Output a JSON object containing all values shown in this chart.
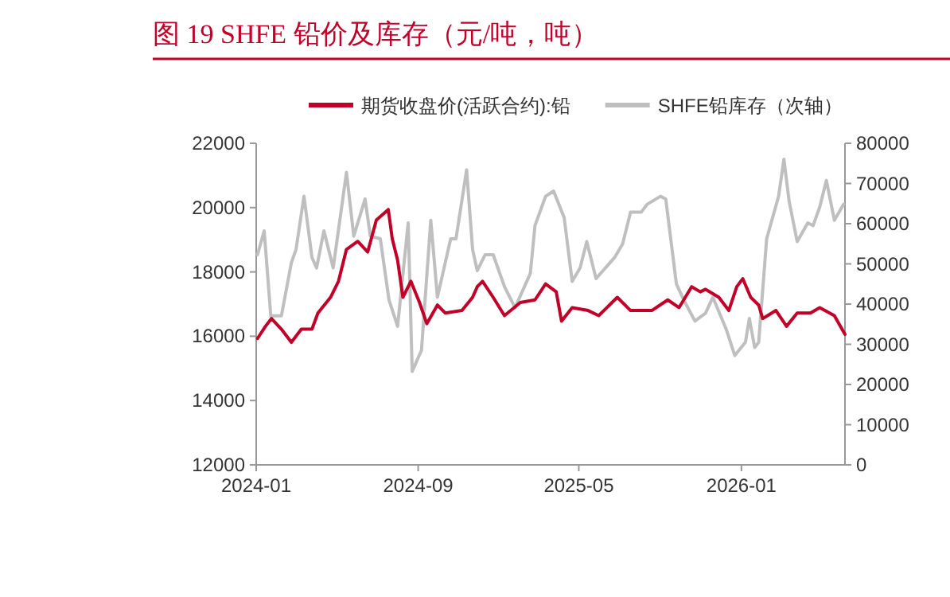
{
  "chart_data": {
    "type": "line",
    "title": "图 19  SHFE 铅价及库存（元/吨，吨）",
    "legend": "top",
    "grid": false,
    "marker": "none",
    "line_style": "solid",
    "xlim": [
      "2024-01-01",
      "2026-06-06"
    ],
    "xticks": [
      "2024-01",
      "2024-09",
      "2025-05",
      "2026-01"
    ],
    "ylim": [
      12000,
      22000
    ],
    "yticks": [
      12000,
      14000,
      16000,
      18000,
      20000,
      22000
    ],
    "y2lim": [
      0,
      80000
    ],
    "y2ticks": [
      0,
      10000,
      20000,
      30000,
      40000,
      50000,
      60000,
      70000,
      80000
    ],
    "series": [
      {
        "name": "期货收盘价(活跃合约):铅",
        "color": "#c00028",
        "x": [
          "2024-01-03",
          "2024-01-15",
          "2024-01-24",
          "2024-02-08",
          "2024-02-23",
          "2024-03-09",
          "2024-03-25",
          "2024-04-03",
          "2024-04-22",
          "2024-05-04",
          "2024-05-16",
          "2024-06-02",
          "2024-06-17",
          "2024-06-30",
          "2024-07-18",
          "2024-07-24",
          "2024-08-01",
          "2024-08-09",
          "2024-08-21",
          "2024-09-03",
          "2024-09-14",
          "2024-09-30",
          "2024-10-12",
          "2024-11-06",
          "2024-11-22",
          "2024-11-29",
          "2024-12-07",
          "2024-12-23",
          "2025-01-09",
          "2025-02-02",
          "2025-02-24",
          "2025-03-12",
          "2025-03-28",
          "2025-04-05",
          "2025-04-21",
          "2025-05-15",
          "2025-05-31",
          "2025-06-28",
          "2025-07-18",
          "2025-08-19",
          "2025-09-12",
          "2025-09-29",
          "2025-10-18",
          "2025-10-31",
          "2025-11-08",
          "2025-11-28",
          "2025-12-13",
          "2025-12-25",
          "2026-01-03",
          "2026-01-15",
          "2026-01-27",
          "2026-02-02",
          "2026-02-22",
          "2026-03-10",
          "2026-03-26",
          "2026-04-15",
          "2026-04-29",
          "2026-05-21",
          "2026-06-06"
        ],
        "values": [
          15930,
          16310,
          16550,
          16220,
          15810,
          16220,
          16220,
          16720,
          17210,
          17710,
          18700,
          18950,
          18620,
          19610,
          19940,
          19030,
          18370,
          17210,
          17710,
          17050,
          16390,
          16970,
          16720,
          16800,
          17210,
          17540,
          17710,
          17210,
          16640,
          17050,
          17130,
          17630,
          17380,
          16470,
          16890,
          16800,
          16640,
          17210,
          16800,
          16800,
          17130,
          16890,
          17540,
          17380,
          17460,
          17210,
          16800,
          17540,
          17790,
          17210,
          16970,
          16550,
          16800,
          16310,
          16720,
          16720,
          16890,
          16640,
          16060
        ]
      },
      {
        "name": "SHFE铅库存（次轴）",
        "color": "#bfbfbf",
        "axis": "y2",
        "x": [
          "2024-01-03",
          "2024-01-13",
          "2024-01-23",
          "2024-02-08",
          "2024-02-23",
          "2024-03-01",
          "2024-03-13",
          "2024-03-25",
          "2024-04-01",
          "2024-04-12",
          "2024-04-26",
          "2024-05-16",
          "2024-05-27",
          "2024-06-13",
          "2024-06-21",
          "2024-07-06",
          "2024-07-19",
          "2024-08-01",
          "2024-08-17",
          "2024-08-23",
          "2024-09-06",
          "2024-09-20",
          "2024-09-30",
          "2024-10-20",
          "2024-10-28",
          "2024-11-13",
          "2024-11-22",
          "2024-11-29",
          "2024-12-11",
          "2024-12-23",
          "2025-01-09",
          "2025-01-25",
          "2025-02-17",
          "2025-02-24",
          "2025-03-12",
          "2025-03-24",
          "2025-04-09",
          "2025-04-21",
          "2025-05-03",
          "2025-05-13",
          "2025-05-27",
          "2025-06-24",
          "2025-07-06",
          "2025-07-18",
          "2025-08-03",
          "2025-08-12",
          "2025-09-01",
          "2025-09-09",
          "2025-09-25",
          "2025-10-06",
          "2025-10-23",
          "2025-11-08",
          "2025-11-19",
          "2025-12-09",
          "2025-12-22",
          "2026-01-07",
          "2026-01-13",
          "2026-01-21",
          "2026-01-27",
          "2026-02-08",
          "2026-02-26",
          "2026-03-06",
          "2026-03-14",
          "2026-03-26",
          "2026-04-11",
          "2026-04-19",
          "2026-04-29",
          "2026-05-09",
          "2026-05-21",
          "2026-06-04"
        ],
        "values": [
          52280,
          58220,
          37100,
          37100,
          50300,
          53600,
          66810,
          51600,
          48990,
          58220,
          48990,
          72750,
          56900,
          66140,
          56900,
          56240,
          41070,
          34460,
          60200,
          23250,
          28510,
          60860,
          41700,
          56240,
          56240,
          73390,
          53600,
          48320,
          52280,
          52280,
          44360,
          39090,
          47650,
          59520,
          66810,
          68120,
          61500,
          45660,
          48990,
          55560,
          46340,
          51600,
          54930,
          62850,
          62850,
          64830,
          66810,
          66140,
          45030,
          41070,
          35760,
          37740,
          41700,
          33780,
          27210,
          30490,
          36430,
          29190,
          30490,
          56240,
          66810,
          76040,
          65470,
          55560,
          60200,
          59520,
          64160,
          70770,
          60860,
          64830
        ]
      }
    ]
  }
}
